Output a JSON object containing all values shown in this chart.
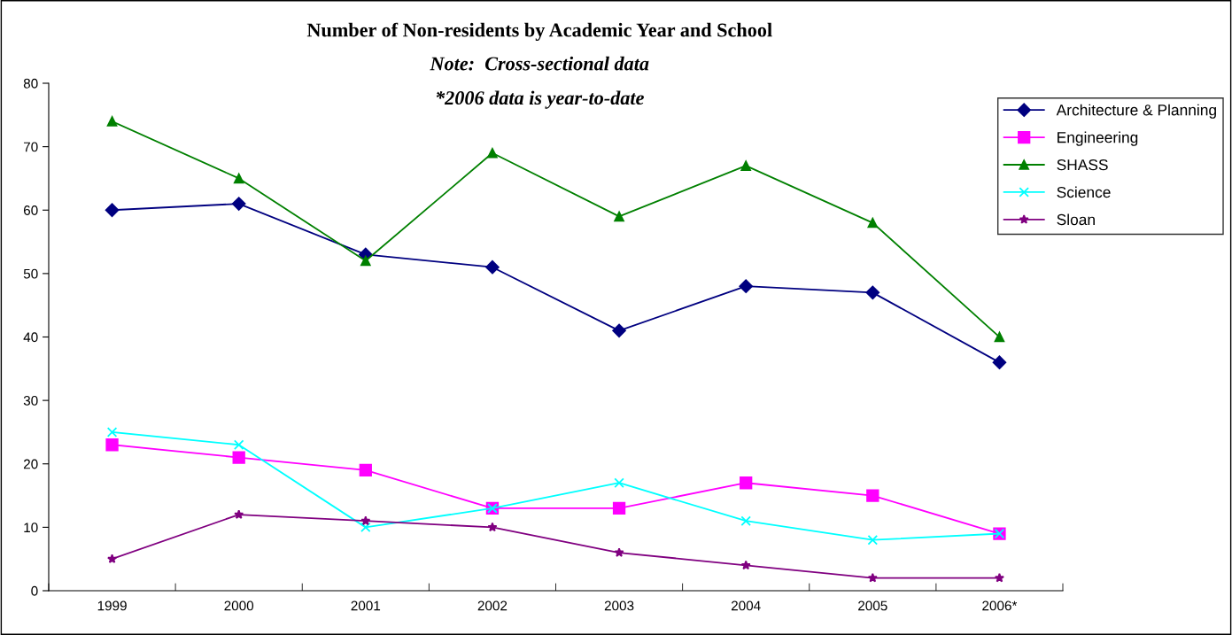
{
  "chart_data": {
    "type": "line",
    "title": "Number of Non-residents by Academic Year and School",
    "subtitle": "Note:  Cross-sectional data",
    "annotations": [
      "*2006 data is year-to-date"
    ],
    "categories": [
      "1999",
      "2000",
      "2001",
      "2002",
      "2003",
      "2004",
      "2005",
      "2006*"
    ],
    "series": [
      {
        "name": "Architecture & Planning",
        "color": "#000080",
        "marker": "diamond",
        "values": [
          60,
          61,
          53,
          51,
          41,
          48,
          47,
          36
        ]
      },
      {
        "name": "Engineering",
        "color": "#ff00ff",
        "marker": "square",
        "values": [
          23,
          21,
          19,
          13,
          13,
          17,
          15,
          9
        ]
      },
      {
        "name": "SHASS",
        "color": "#008000",
        "marker": "triangle",
        "values": [
          74,
          65,
          52,
          69,
          59,
          67,
          58,
          40
        ]
      },
      {
        "name": "Science",
        "color": "#00ffff",
        "marker": "cross",
        "values": [
          25,
          23,
          10,
          13,
          17,
          11,
          8,
          9
        ]
      },
      {
        "name": "Sloan",
        "color": "#800080",
        "marker": "star",
        "values": [
          5,
          12,
          11,
          10,
          6,
          4,
          2,
          2
        ]
      }
    ],
    "ylim": [
      0,
      80
    ],
    "yticks": [
      0,
      10,
      20,
      30,
      40,
      50,
      60,
      70,
      80
    ],
    "grid": false,
    "legend": "right",
    "line_style": "solid"
  }
}
